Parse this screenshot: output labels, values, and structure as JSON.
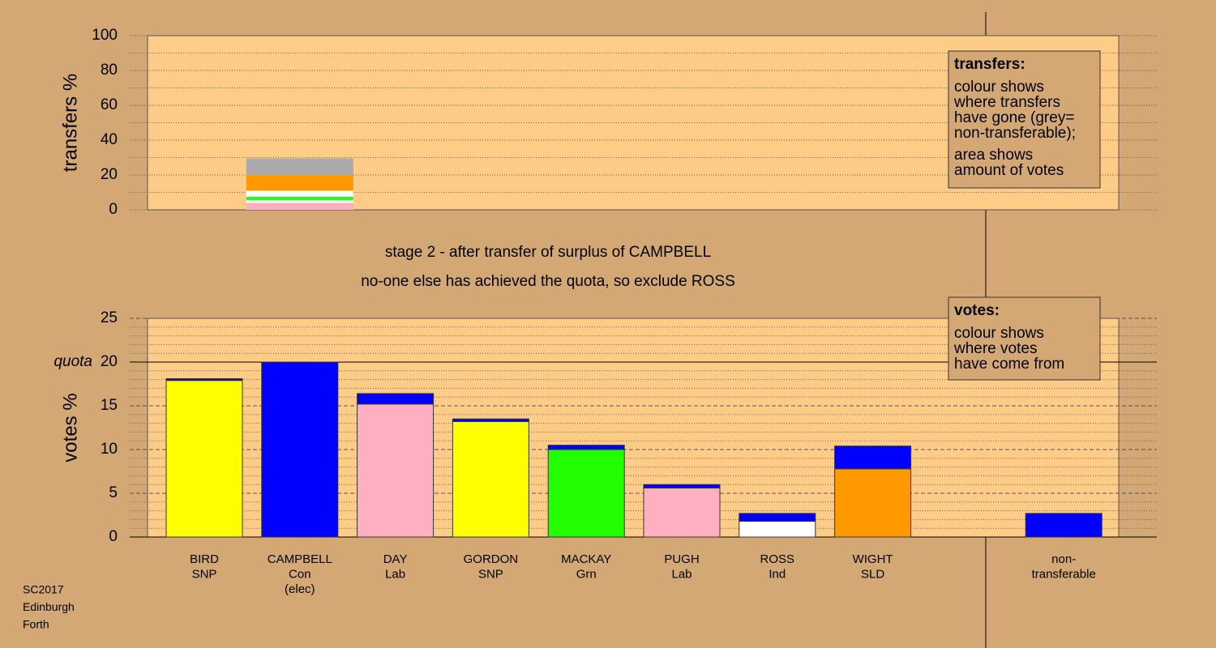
{
  "chart_data": [
    {
      "type": "stacked-bar",
      "ylabel": "transfers %",
      "ylim": [
        0,
        100
      ],
      "yticks": [
        0,
        20,
        40,
        60,
        80,
        100
      ],
      "minor_yticks": [
        10,
        30,
        50,
        70,
        90
      ],
      "series": [
        {
          "color": "#ffb0c0",
          "values": [
            4
          ]
        },
        {
          "color": "#ffffff",
          "values": [
            1.5
          ]
        },
        {
          "color": "#22ff22",
          "values": [
            2
          ]
        },
        {
          "color": "#ffffff",
          "values": [
            3.5
          ]
        },
        {
          "color": "#ff9900",
          "values": [
            9
          ]
        },
        {
          "color": "#aaaaaa",
          "values": [
            9.5
          ]
        }
      ],
      "note": {
        "title": "transfers:",
        "paragraphs": [
          [
            "colour shows",
            "where transfers",
            "have gone (grey=",
            "non-transferable);"
          ],
          [
            "area shows",
            "amount of votes"
          ]
        ]
      }
    },
    {
      "type": "stacked-bar",
      "ylabel": "votes %",
      "ylim": [
        0,
        25
      ],
      "yticks": [
        0,
        5,
        10,
        15,
        20,
        25
      ],
      "minor_yticks": [
        1,
        2,
        3,
        4,
        6,
        7,
        8,
        9,
        11,
        12,
        13,
        14,
        16,
        17,
        18,
        19,
        21,
        22,
        23,
        24
      ],
      "quota": {
        "value": 20,
        "label": "quota"
      },
      "categories": [
        [
          "BIRD",
          "SNP"
        ],
        [
          "CAMPBELL",
          "Con",
          "(elec)"
        ],
        [
          "DAY",
          "Lab"
        ],
        [
          "GORDON",
          "SNP"
        ],
        [
          "MACKAY",
          "Grn"
        ],
        [
          "PUGH",
          "Lab"
        ],
        [
          "ROSS",
          "Ind"
        ],
        [
          "WIGHT",
          "SLD"
        ],
        null,
        [
          "non-",
          "transferable"
        ]
      ],
      "series": [
        {
          "colors": [
            "#ffff00",
            "#0000ff",
            "#ffb0c0",
            "#ffff00",
            "#22ff00",
            "#ffb0c0",
            "#ffffff",
            "#ff9900",
            null,
            "#0000ff"
          ],
          "values": [
            17.9,
            20,
            15.2,
            13.2,
            10.0,
            5.6,
            1.8,
            7.8,
            null,
            2.7
          ]
        },
        {
          "color": "#0000ff",
          "values": [
            0.2,
            0,
            1.2,
            0.3,
            0.5,
            0.4,
            0.9,
            2.6,
            null,
            null
          ]
        }
      ],
      "note": {
        "title": "votes:",
        "paragraphs": [
          [
            "colour shows",
            "where votes",
            "have come from"
          ]
        ]
      }
    }
  ],
  "header": {
    "lines": [
      "stage 2 - after transfer of surplus of CAMPBELL",
      "no-one else has achieved the quota, so exclude ROSS"
    ]
  },
  "footer": {
    "lines": [
      "SC2017",
      "Edinburgh",
      "Forth"
    ]
  }
}
